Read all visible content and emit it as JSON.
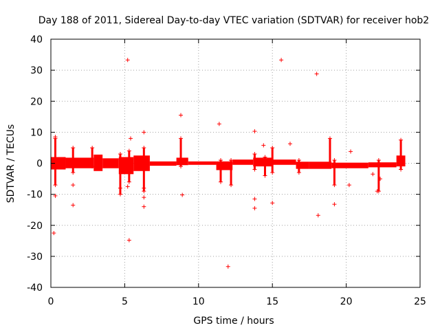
{
  "chart_data": {
    "type": "scatter",
    "title": "Day 188 of 2011, Sidereal Day-to-day VTEC variation (SDTVAR) for receiver hob2",
    "xlabel": "GPS time / hours",
    "ylabel": "SDTVAR / TECUs",
    "xlim": [
      0,
      25
    ],
    "ylim": [
      -40,
      40
    ],
    "xticks": [
      0,
      5,
      10,
      15,
      20,
      25
    ],
    "yticks": [
      -40,
      -30,
      -20,
      -10,
      0,
      10,
      20,
      30,
      40
    ],
    "grid": true,
    "marker": "+",
    "color": "#ff0000",
    "band": [
      {
        "x0": 0.0,
        "x1": 1.0,
        "lo": -2.0,
        "hi": 2.0
      },
      {
        "x0": 1.0,
        "x1": 2.9,
        "lo": -1.6,
        "hi": 1.8
      },
      {
        "x0": 2.9,
        "x1": 3.5,
        "lo": -2.5,
        "hi": 2.8
      },
      {
        "x0": 3.5,
        "x1": 4.6,
        "lo": -1.6,
        "hi": 1.6
      },
      {
        "x0": 4.6,
        "x1": 5.6,
        "lo": -3.5,
        "hi": 2.0
      },
      {
        "x0": 5.6,
        "x1": 6.7,
        "lo": -2.5,
        "hi": 2.5
      },
      {
        "x0": 6.7,
        "x1": 8.5,
        "lo": -0.8,
        "hi": 0.6
      },
      {
        "x0": 8.5,
        "x1": 9.3,
        "lo": -0.6,
        "hi": 1.8
      },
      {
        "x0": 9.3,
        "x1": 11.2,
        "lo": -0.5,
        "hi": 0.6
      },
      {
        "x0": 11.2,
        "x1": 12.3,
        "lo": -2.2,
        "hi": 0.6
      },
      {
        "x0": 12.3,
        "x1": 13.7,
        "lo": -0.5,
        "hi": 1.2
      },
      {
        "x0": 13.7,
        "x1": 15.0,
        "lo": -1.0,
        "hi": 1.8
      },
      {
        "x0": 15.0,
        "x1": 16.6,
        "lo": -0.5,
        "hi": 1.2
      },
      {
        "x0": 16.6,
        "x1": 17.5,
        "lo": -1.8,
        "hi": 0.5
      },
      {
        "x0": 17.5,
        "x1": 19.0,
        "lo": -1.8,
        "hi": 0.5
      },
      {
        "x0": 19.0,
        "x1": 21.5,
        "lo": -1.6,
        "hi": 0.2
      },
      {
        "x0": 21.5,
        "x1": 23.4,
        "lo": -1.3,
        "hi": 0.3
      },
      {
        "x0": 23.4,
        "x1": 24.0,
        "lo": -1.0,
        "hi": 2.5
      }
    ],
    "spikes": [
      {
        "x": 0.3,
        "lo": -7,
        "hi": 8
      },
      {
        "x": 1.5,
        "lo": -3,
        "hi": 5
      },
      {
        "x": 2.8,
        "lo": -1,
        "hi": 5
      },
      {
        "x": 4.7,
        "lo": -10,
        "hi": 3
      },
      {
        "x": 5.3,
        "lo": -6,
        "hi": 4
      },
      {
        "x": 6.3,
        "lo": -9,
        "hi": 5
      },
      {
        "x": 8.8,
        "lo": -1,
        "hi": 8
      },
      {
        "x": 11.5,
        "lo": -6,
        "hi": 1
      },
      {
        "x": 12.2,
        "lo": -7,
        "hi": 1
      },
      {
        "x": 13.8,
        "lo": -2,
        "hi": 3
      },
      {
        "x": 14.5,
        "lo": -4,
        "hi": 2
      },
      {
        "x": 15.0,
        "lo": -3,
        "hi": 5
      },
      {
        "x": 16.8,
        "lo": -3,
        "hi": 1
      },
      {
        "x": 18.9,
        "lo": -1,
        "hi": 8
      },
      {
        "x": 19.2,
        "lo": -7,
        "hi": 1
      },
      {
        "x": 22.2,
        "lo": -9,
        "hi": 1
      },
      {
        "x": 23.7,
        "lo": -2,
        "hi": 7.5
      }
    ],
    "outliers": [
      [
        0.2,
        -22.5
      ],
      [
        0.3,
        8.5
      ],
      [
        0.3,
        -10.5
      ],
      [
        1.5,
        -7
      ],
      [
        1.5,
        -13.5
      ],
      [
        4.7,
        -8
      ],
      [
        5.2,
        33.3
      ],
      [
        5.3,
        -24.8
      ],
      [
        5.4,
        8
      ],
      [
        5.2,
        -7.5
      ],
      [
        6.3,
        10
      ],
      [
        6.3,
        -8
      ],
      [
        6.3,
        -14
      ],
      [
        6.3,
        -11
      ],
      [
        8.8,
        15.5
      ],
      [
        8.9,
        -10.2
      ],
      [
        11.4,
        12.7
      ],
      [
        12.0,
        -33.3
      ],
      [
        13.8,
        10.3
      ],
      [
        13.8,
        -11.5
      ],
      [
        13.8,
        -14.5
      ],
      [
        14.4,
        5.8
      ],
      [
        15.0,
        -12.8
      ],
      [
        15.6,
        33.3
      ],
      [
        16.2,
        6.3
      ],
      [
        18.0,
        28.8
      ],
      [
        18.1,
        -16.8
      ],
      [
        19.2,
        -13.2
      ],
      [
        20.3,
        3.8
      ],
      [
        20.2,
        -7
      ],
      [
        21.8,
        -3.5
      ],
      [
        22.3,
        -5
      ],
      [
        22.1,
        -9
      ]
    ]
  }
}
